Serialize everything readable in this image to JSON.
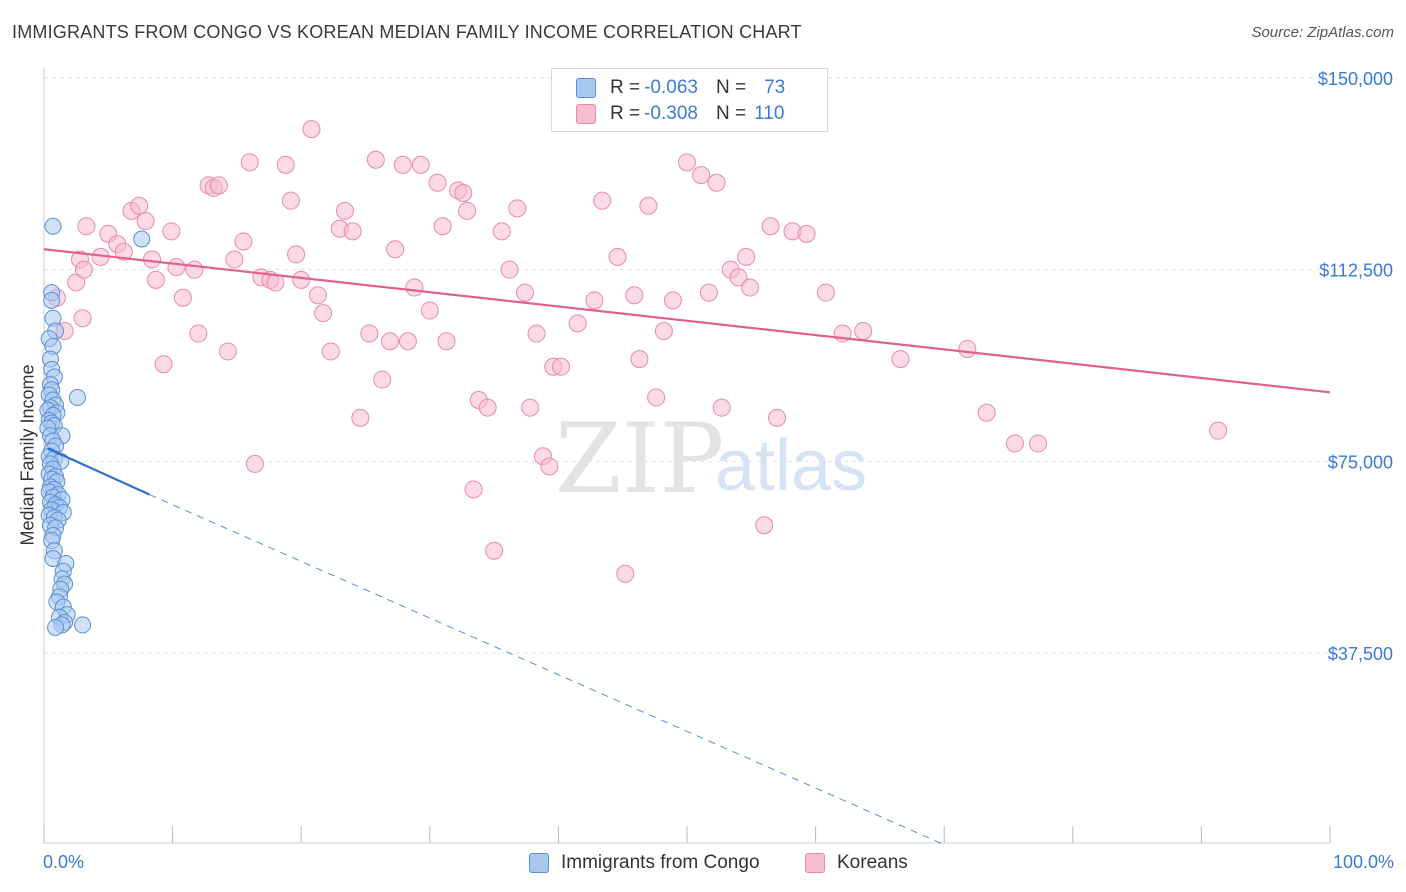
{
  "title": "IMMIGRANTS FROM CONGO VS KOREAN MEDIAN FAMILY INCOME CORRELATION CHART",
  "source": "Source: ZipAtlas.com",
  "watermark": {
    "zip": "ZIP",
    "atlas": "atlas"
  },
  "legend": {
    "rows": [
      {
        "r_label": "R =",
        "r_value": "-0.063",
        "n_label": "N =",
        "n_value": "73"
      },
      {
        "r_label": "R =",
        "r_value": "-0.308",
        "n_label": "N =",
        "n_value": "110"
      }
    ]
  },
  "bottom_legend": [
    "Immigrants from Congo",
    "Koreans"
  ],
  "chart_data": {
    "type": "scatter",
    "title": "IMMIGRANTS FROM CONGO VS KOREAN MEDIAN FAMILY INCOME CORRELATION CHART",
    "xlabel": "",
    "ylabel": "Median Family Income",
    "xlim": [
      0,
      100
    ],
    "ylim": [
      0,
      155000
    ],
    "x_tick_labels": [
      "0.0%",
      "100.0%"
    ],
    "y_ticks": [
      37500,
      75000,
      112500,
      150000
    ],
    "y_tick_labels": [
      "$37,500",
      "$75,000",
      "$112,500",
      "$150,000"
    ],
    "grid": true,
    "legend_position": "top-center",
    "colors": {
      "congo_fill": "#a9c8f0",
      "congo_stroke": "#5b8fd6",
      "congo_line": "#2f6fd0",
      "korean_fill": "#f8bcd0",
      "korean_stroke": "#e98aa9",
      "korean_line": "#e0628b",
      "axis_text": "#3a7bd5"
    },
    "series": [
      {
        "name": "Immigrants from Congo",
        "R": -0.063,
        "N": 73,
        "trend": {
          "x": [
            0.3,
            8.2
          ],
          "y": [
            77500,
            68500
          ]
        },
        "trend_dashed": {
          "x": [
            8.2,
            70.0
          ],
          "y": [
            68500,
            0
          ]
        },
        "points": [
          [
            0.7,
            121000
          ],
          [
            7.6,
            118500
          ],
          [
            0.6,
            108000
          ],
          [
            0.6,
            106500
          ],
          [
            0.7,
            103000
          ],
          [
            0.9,
            100500
          ],
          [
            0.4,
            99000
          ],
          [
            0.7,
            97500
          ],
          [
            0.5,
            95000
          ],
          [
            0.6,
            93000
          ],
          [
            0.8,
            91500
          ],
          [
            0.5,
            90000
          ],
          [
            0.6,
            89000
          ],
          [
            0.4,
            88000
          ],
          [
            2.6,
            87500
          ],
          [
            0.7,
            87000
          ],
          [
            0.9,
            86000
          ],
          [
            0.5,
            85500
          ],
          [
            0.3,
            85000
          ],
          [
            1.0,
            84500
          ],
          [
            0.7,
            84000
          ],
          [
            0.4,
            83000
          ],
          [
            0.6,
            82500
          ],
          [
            0.8,
            82000
          ],
          [
            0.3,
            81500
          ],
          [
            0.5,
            80000
          ],
          [
            1.4,
            80000
          ],
          [
            0.7,
            79000
          ],
          [
            0.9,
            78000
          ],
          [
            0.6,
            77000
          ],
          [
            0.4,
            76000
          ],
          [
            0.8,
            75500
          ],
          [
            1.3,
            75000
          ],
          [
            0.5,
            74500
          ],
          [
            0.7,
            73500
          ],
          [
            0.4,
            72500
          ],
          [
            0.9,
            72000
          ],
          [
            0.6,
            71500
          ],
          [
            1.0,
            71000
          ],
          [
            0.5,
            70000
          ],
          [
            0.8,
            69500
          ],
          [
            0.4,
            69000
          ],
          [
            1.1,
            68500
          ],
          [
            0.7,
            68000
          ],
          [
            1.4,
            67500
          ],
          [
            0.5,
            67000
          ],
          [
            0.9,
            66500
          ],
          [
            1.2,
            66000
          ],
          [
            0.6,
            65500
          ],
          [
            1.5,
            65000
          ],
          [
            0.4,
            64500
          ],
          [
            0.8,
            64000
          ],
          [
            1.1,
            63500
          ],
          [
            0.5,
            62500
          ],
          [
            0.9,
            62000
          ],
          [
            0.7,
            60500
          ],
          [
            0.6,
            59500
          ],
          [
            0.8,
            57500
          ],
          [
            0.7,
            56000
          ],
          [
            1.7,
            55000
          ],
          [
            1.5,
            53500
          ],
          [
            1.4,
            52000
          ],
          [
            1.6,
            51000
          ],
          [
            1.3,
            50000
          ],
          [
            1.2,
            48500
          ],
          [
            1.0,
            47500
          ],
          [
            1.5,
            46500
          ],
          [
            1.8,
            45000
          ],
          [
            1.2,
            44500
          ],
          [
            1.6,
            43500
          ],
          [
            1.4,
            43000
          ],
          [
            3.0,
            43000
          ],
          [
            0.9,
            42500
          ]
        ]
      },
      {
        "name": "Koreans",
        "R": -0.308,
        "N": 110,
        "trend": {
          "x": [
            0.0,
            100.0
          ],
          "y": [
            116500,
            88500
          ]
        },
        "points": [
          [
            1.0,
            107000
          ],
          [
            1.6,
            100500
          ],
          [
            3.0,
            103000
          ],
          [
            3.3,
            121000
          ],
          [
            2.5,
            110000
          ],
          [
            2.8,
            114500
          ],
          [
            3.1,
            112500
          ],
          [
            4.4,
            115000
          ],
          [
            5.0,
            119500
          ],
          [
            5.7,
            117500
          ],
          [
            6.2,
            116000
          ],
          [
            6.8,
            124000
          ],
          [
            7.4,
            125000
          ],
          [
            7.9,
            122000
          ],
          [
            8.4,
            114500
          ],
          [
            8.7,
            110500
          ],
          [
            9.3,
            94000
          ],
          [
            9.9,
            120000
          ],
          [
            10.3,
            113000
          ],
          [
            10.8,
            107000
          ],
          [
            11.7,
            112500
          ],
          [
            12.0,
            100000
          ],
          [
            12.8,
            129000
          ],
          [
            13.2,
            128500
          ],
          [
            13.6,
            129000
          ],
          [
            14.3,
            96500
          ],
          [
            14.8,
            114500
          ],
          [
            15.5,
            118000
          ],
          [
            16.0,
            133500
          ],
          [
            16.4,
            74500
          ],
          [
            16.9,
            111000
          ],
          [
            17.6,
            110500
          ],
          [
            18.0,
            110000
          ],
          [
            18.8,
            133000
          ],
          [
            19.2,
            126000
          ],
          [
            19.6,
            115500
          ],
          [
            20.0,
            110500
          ],
          [
            20.8,
            140000
          ],
          [
            21.3,
            107500
          ],
          [
            21.7,
            104000
          ],
          [
            22.3,
            96500
          ],
          [
            23.0,
            120500
          ],
          [
            23.4,
            124000
          ],
          [
            24.0,
            120000
          ],
          [
            24.6,
            83500
          ],
          [
            25.3,
            100000
          ],
          [
            25.8,
            134000
          ],
          [
            26.3,
            91000
          ],
          [
            26.9,
            98500
          ],
          [
            27.3,
            116500
          ],
          [
            27.9,
            133000
          ],
          [
            28.3,
            98500
          ],
          [
            28.8,
            109000
          ],
          [
            29.3,
            133000
          ],
          [
            30.0,
            104500
          ],
          [
            30.6,
            129500
          ],
          [
            31.0,
            121000
          ],
          [
            31.3,
            98500
          ],
          [
            32.2,
            128000
          ],
          [
            32.6,
            127500
          ],
          [
            32.9,
            124000
          ],
          [
            33.4,
            69500
          ],
          [
            33.8,
            87000
          ],
          [
            34.5,
            85500
          ],
          [
            35.0,
            57500
          ],
          [
            35.6,
            120000
          ],
          [
            36.2,
            112500
          ],
          [
            36.8,
            124500
          ],
          [
            37.4,
            108000
          ],
          [
            37.8,
            85500
          ],
          [
            38.3,
            100000
          ],
          [
            38.8,
            76000
          ],
          [
            39.3,
            74000
          ],
          [
            39.6,
            93500
          ],
          [
            40.2,
            93500
          ],
          [
            41.5,
            102000
          ],
          [
            42.8,
            106500
          ],
          [
            43.4,
            126000
          ],
          [
            44.6,
            115000
          ],
          [
            45.2,
            53000
          ],
          [
            45.9,
            107500
          ],
          [
            46.3,
            95000
          ],
          [
            47.0,
            125000
          ],
          [
            47.6,
            87500
          ],
          [
            48.2,
            100500
          ],
          [
            48.9,
            106500
          ],
          [
            50.0,
            133500
          ],
          [
            51.1,
            131000
          ],
          [
            51.7,
            108000
          ],
          [
            52.3,
            129500
          ],
          [
            52.7,
            85500
          ],
          [
            53.4,
            112500
          ],
          [
            54.0,
            111000
          ],
          [
            54.6,
            115000
          ],
          [
            54.9,
            109000
          ],
          [
            56.0,
            62500
          ],
          [
            56.5,
            121000
          ],
          [
            57.0,
            83500
          ],
          [
            58.2,
            120000
          ],
          [
            59.3,
            119500
          ],
          [
            60.8,
            108000
          ],
          [
            62.1,
            100000
          ],
          [
            63.7,
            100500
          ],
          [
            66.6,
            95000
          ],
          [
            71.8,
            97000
          ],
          [
            73.3,
            84500
          ],
          [
            75.5,
            78500
          ],
          [
            77.3,
            78500
          ],
          [
            91.3,
            81000
          ],
          [
            49.0,
            148500
          ]
        ]
      }
    ]
  }
}
